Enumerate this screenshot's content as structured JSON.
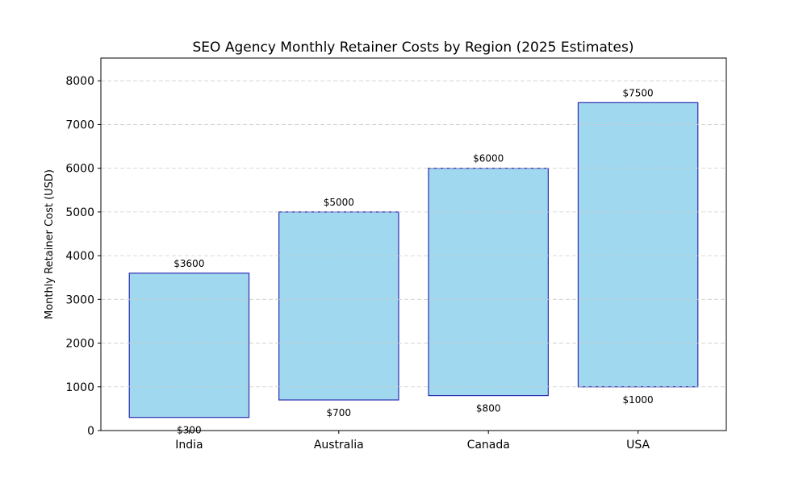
{
  "chart_data": {
    "type": "bar",
    "subtype": "floating-range",
    "title": "SEO Agency Monthly Retainer Costs by Region (2025 Estimates)",
    "xlabel": "",
    "ylabel": "Monthly Retainer Cost (USD)",
    "categories": [
      "India",
      "Australia",
      "Canada",
      "USA"
    ],
    "low_values": [
      300,
      700,
      800,
      1000
    ],
    "high_values": [
      3600,
      5000,
      6000,
      7500
    ],
    "low_labels": [
      "$300",
      "$700",
      "$800",
      "$1000"
    ],
    "high_labels": [
      "$3600",
      "$5000",
      "$6000",
      "$7500"
    ],
    "ylim": [
      0,
      8520
    ],
    "yticks": [
      0,
      1000,
      2000,
      3000,
      4000,
      5000,
      6000,
      7000,
      8000
    ],
    "grid": "y-dashed",
    "legend": "none",
    "colors": {
      "fill": "#a0d8ef",
      "edge": "#2b2bb0",
      "grid": "#cccccc"
    }
  }
}
